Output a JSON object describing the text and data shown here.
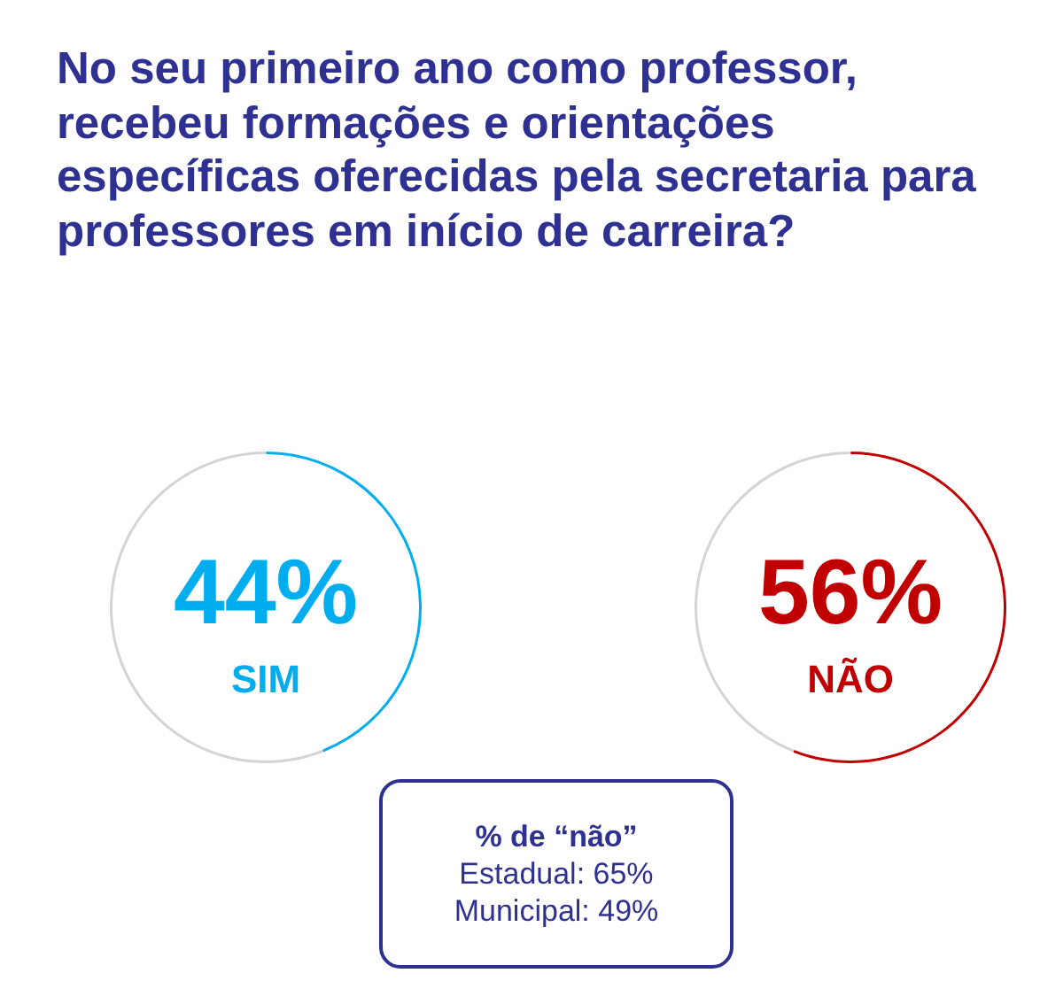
{
  "chart_data": [
    {
      "type": "donut",
      "title": "No seu primeiro ano como professor, recebeu formações e orientações específicas oferecidas pela secretaria para professores em início de carreira?",
      "categories": [
        "SIM",
        null
      ],
      "values": [
        44,
        56
      ],
      "colors": [
        "#00aeef",
        "#d4d4d4"
      ],
      "value_labels": [
        "44%",
        null
      ]
    },
    {
      "type": "donut",
      "categories": [
        "NÃO",
        null
      ],
      "values": [
        56,
        44
      ],
      "colors": [
        "#c00000",
        "#d4d4d4"
      ],
      "value_labels": [
        "56%",
        null
      ],
      "annotations": [
        "% de “não”",
        "Estadual: 65%",
        "Municipal: 49%"
      ]
    }
  ]
}
